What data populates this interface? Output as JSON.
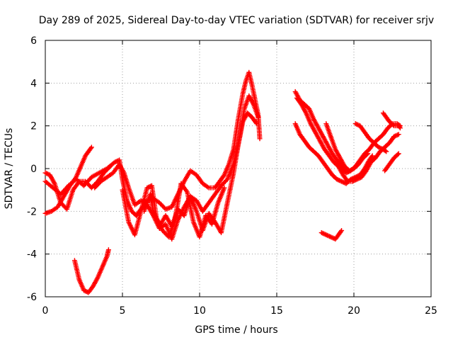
{
  "chart_data": {
    "type": "scatter",
    "title": "Day 289 of 2025, Sidereal Day-to-day VTEC variation (SDTVAR) for receiver srjv",
    "xlabel": "GPS time / hours",
    "ylabel": "SDTVAR / TECUs",
    "xlim": [
      0,
      25
    ],
    "ylim": [
      -6,
      6
    ],
    "x_ticks": [
      "0",
      "5",
      "10",
      "15",
      "20",
      "25"
    ],
    "y_ticks": [
      "-6",
      "-4",
      "-2",
      "0",
      "2",
      "4",
      "6"
    ],
    "grid": true,
    "marker": "plus",
    "color": "#ff0000",
    "series": [
      {
        "name": "track-a",
        "points": [
          [
            0.0,
            -0.6
          ],
          [
            0.5,
            -0.9
          ],
          [
            1.0,
            -1.2
          ],
          [
            1.5,
            -0.8
          ],
          [
            2.0,
            -0.5
          ],
          [
            2.5,
            -0.8
          ],
          [
            3.0,
            -0.4
          ],
          [
            3.5,
            -0.2
          ],
          [
            4.0,
            0.0
          ],
          [
            4.5,
            0.3
          ],
          [
            4.8,
            0.4
          ],
          [
            5.0,
            -0.5
          ],
          [
            5.3,
            -1.5
          ],
          [
            5.6,
            -2.0
          ],
          [
            5.9,
            -2.2
          ],
          [
            6.2,
            -1.9
          ],
          [
            6.6,
            -1.5
          ],
          [
            7.0,
            -1.4
          ],
          [
            7.4,
            -1.6
          ],
          [
            7.8,
            -1.9
          ],
          [
            8.2,
            -1.8
          ],
          [
            8.6,
            -1.2
          ],
          [
            9.0,
            -0.6
          ],
          [
            9.4,
            -0.1
          ],
          [
            9.8,
            -0.3
          ],
          [
            10.2,
            -0.7
          ],
          [
            10.6,
            -0.9
          ],
          [
            11.0,
            -0.9
          ],
          [
            11.3,
            -0.6
          ],
          [
            11.6,
            -0.3
          ],
          [
            11.9,
            0.2
          ],
          [
            12.2,
            0.9
          ],
          [
            12.5,
            2.3
          ],
          [
            12.8,
            3.5
          ],
          [
            13.0,
            4.1
          ],
          [
            13.2,
            4.5
          ],
          [
            13.4,
            3.9
          ],
          [
            13.6,
            3.2
          ],
          [
            13.8,
            2.5
          ],
          [
            13.9,
            1.4
          ]
        ]
      },
      {
        "name": "track-b",
        "points": [
          [
            0.0,
            -2.1
          ],
          [
            0.4,
            -2.0
          ],
          [
            0.8,
            -1.8
          ],
          [
            1.2,
            -1.3
          ],
          [
            1.6,
            -0.8
          ],
          [
            2.0,
            -0.4
          ],
          [
            2.3,
            0.1
          ],
          [
            2.6,
            0.6
          ],
          [
            2.9,
            0.9
          ],
          [
            3.0,
            1.0
          ]
        ]
      },
      {
        "name": "track-c",
        "points": [
          [
            3.2,
            -0.9
          ],
          [
            3.6,
            -0.6
          ],
          [
            4.0,
            -0.4
          ],
          [
            4.4,
            -0.2
          ],
          [
            4.8,
            0.2
          ],
          [
            5.1,
            -0.2
          ],
          [
            5.4,
            -0.9
          ],
          [
            5.8,
            -1.7
          ],
          [
            6.2,
            -1.5
          ],
          [
            6.6,
            -1.7
          ],
          [
            7.0,
            -2.2
          ],
          [
            7.4,
            -2.8
          ],
          [
            7.8,
            -2.6
          ],
          [
            8.2,
            -3.3
          ],
          [
            8.6,
            -2.4
          ],
          [
            9.0,
            -1.8
          ],
          [
            9.4,
            -1.3
          ],
          [
            9.8,
            -2.0
          ],
          [
            10.2,
            -2.9
          ],
          [
            10.6,
            -2.1
          ],
          [
            11.0,
            -2.5
          ],
          [
            11.4,
            -3.0
          ],
          [
            11.8,
            -1.6
          ],
          [
            12.2,
            -0.2
          ],
          [
            12.5,
            1.1
          ],
          [
            12.8,
            2.2
          ],
          [
            13.1,
            2.6
          ],
          [
            13.4,
            2.4
          ],
          [
            13.7,
            2.1
          ]
        ]
      },
      {
        "name": "track-d",
        "points": [
          [
            0.0,
            -0.2
          ],
          [
            0.3,
            -0.3
          ],
          [
            0.6,
            -0.7
          ],
          [
            1.0,
            -1.6
          ],
          [
            1.4,
            -1.9
          ],
          [
            1.8,
            -1.0
          ],
          [
            2.2,
            -0.6
          ],
          [
            2.6,
            -0.6
          ],
          [
            3.0,
            -0.9
          ],
          [
            3.4,
            -0.6
          ],
          [
            3.8,
            -0.2
          ],
          [
            4.2,
            0.1
          ]
        ]
      },
      {
        "name": "track-e",
        "points": [
          [
            5.0,
            -1.0
          ],
          [
            5.4,
            -2.5
          ],
          [
            5.8,
            -3.1
          ],
          [
            6.2,
            -2.0
          ],
          [
            6.6,
            -0.9
          ],
          [
            6.9,
            -0.8
          ],
          [
            7.2,
            -2.3
          ],
          [
            7.6,
            -2.9
          ],
          [
            8.0,
            -3.2
          ],
          [
            8.4,
            -2.4
          ],
          [
            8.8,
            -0.7
          ],
          [
            9.2,
            -1.1
          ],
          [
            9.6,
            -2.5
          ],
          [
            10.0,
            -3.2
          ],
          [
            10.4,
            -2.2
          ],
          [
            10.8,
            -2.6
          ],
          [
            11.2,
            -1.6
          ],
          [
            11.6,
            -0.9
          ]
        ]
      },
      {
        "name": "track-f",
        "points": [
          [
            6.4,
            -2.0
          ],
          [
            6.8,
            -1.2
          ],
          [
            7.0,
            -2.0
          ],
          [
            7.4,
            -2.7
          ],
          [
            7.8,
            -2.2
          ],
          [
            8.2,
            -2.7
          ],
          [
            8.6,
            -1.9
          ],
          [
            9.0,
            -2.2
          ],
          [
            9.4,
            -1.3
          ],
          [
            9.8,
            -1.5
          ],
          [
            10.2,
            -2.0
          ],
          [
            10.6,
            -1.6
          ],
          [
            11.0,
            -1.2
          ],
          [
            11.4,
            -0.8
          ],
          [
            11.8,
            -0.5
          ],
          [
            12.2,
            0.2
          ],
          [
            12.6,
            1.5
          ],
          [
            12.9,
            2.8
          ],
          [
            13.2,
            3.4
          ],
          [
            13.5,
            3.0
          ],
          [
            13.8,
            2.4
          ]
        ]
      },
      {
        "name": "track-g",
        "points": [
          [
            1.9,
            -4.3
          ],
          [
            2.2,
            -5.2
          ],
          [
            2.5,
            -5.7
          ],
          [
            2.8,
            -5.8
          ],
          [
            3.1,
            -5.5
          ],
          [
            3.4,
            -5.1
          ],
          [
            3.7,
            -4.6
          ],
          [
            4.0,
            -4.1
          ],
          [
            4.1,
            -3.8
          ]
        ]
      },
      {
        "name": "track-h",
        "points": [
          [
            16.2,
            3.6
          ],
          [
            16.5,
            3.2
          ],
          [
            16.8,
            3.0
          ],
          [
            17.1,
            2.8
          ],
          [
            17.4,
            2.3
          ],
          [
            17.7,
            1.9
          ],
          [
            18.0,
            1.5
          ],
          [
            18.3,
            1.1
          ],
          [
            18.6,
            0.7
          ],
          [
            18.9,
            0.4
          ],
          [
            19.2,
            0.1
          ],
          [
            19.5,
            -0.2
          ],
          [
            19.8,
            -0.1
          ],
          [
            20.1,
            0.1
          ],
          [
            20.4,
            0.4
          ],
          [
            20.7,
            0.7
          ],
          [
            21.0,
            0.9
          ],
          [
            21.3,
            1.2
          ],
          [
            21.6,
            1.4
          ],
          [
            21.9,
            1.6
          ],
          [
            22.2,
            1.9
          ],
          [
            22.5,
            2.1
          ],
          [
            22.8,
            2.1
          ],
          [
            23.0,
            2.0
          ]
        ]
      },
      {
        "name": "track-i",
        "points": [
          [
            16.3,
            3.3
          ],
          [
            16.6,
            3.0
          ],
          [
            16.9,
            2.6
          ],
          [
            17.2,
            2.1
          ],
          [
            17.5,
            1.7
          ],
          [
            17.8,
            1.3
          ],
          [
            18.1,
            0.9
          ],
          [
            18.4,
            0.6
          ],
          [
            18.7,
            0.3
          ],
          [
            19.0,
            0.1
          ],
          [
            19.3,
            -0.3
          ],
          [
            19.6,
            -0.6
          ],
          [
            19.9,
            -0.6
          ],
          [
            20.2,
            -0.5
          ],
          [
            20.5,
            -0.4
          ],
          [
            20.8,
            -0.1
          ],
          [
            21.1,
            0.3
          ],
          [
            21.4,
            0.5
          ],
          [
            21.7,
            0.8
          ],
          [
            22.0,
            1.0
          ],
          [
            22.3,
            1.2
          ],
          [
            22.6,
            1.5
          ],
          [
            22.9,
            1.6
          ]
        ]
      },
      {
        "name": "track-j",
        "points": [
          [
            16.2,
            2.1
          ],
          [
            16.5,
            1.6
          ],
          [
            16.8,
            1.3
          ],
          [
            17.1,
            1.0
          ],
          [
            17.4,
            0.8
          ],
          [
            17.7,
            0.6
          ],
          [
            18.0,
            0.3
          ],
          [
            18.3,
            0.0
          ],
          [
            18.6,
            -0.3
          ],
          [
            18.9,
            -0.5
          ],
          [
            19.2,
            -0.6
          ],
          [
            19.5,
            -0.7
          ],
          [
            19.8,
            -0.5
          ],
          [
            20.1,
            -0.4
          ],
          [
            20.4,
            -0.3
          ],
          [
            20.7,
            0.0
          ],
          [
            21.0,
            0.4
          ],
          [
            21.2,
            0.6
          ]
        ]
      },
      {
        "name": "track-k",
        "points": [
          [
            18.2,
            2.1
          ],
          [
            18.5,
            1.5
          ],
          [
            18.8,
            0.9
          ],
          [
            19.1,
            0.5
          ],
          [
            19.4,
            0.1
          ],
          [
            19.7,
            -0.1
          ],
          [
            20.0,
            0.0
          ],
          [
            20.3,
            0.2
          ],
          [
            20.6,
            0.5
          ],
          [
            20.9,
            0.7
          ]
        ]
      },
      {
        "name": "track-l",
        "points": [
          [
            20.1,
            2.1
          ],
          [
            20.4,
            2.0
          ],
          [
            20.7,
            1.7
          ],
          [
            21.0,
            1.4
          ],
          [
            21.3,
            1.2
          ],
          [
            21.6,
            1.0
          ],
          [
            21.9,
            0.9
          ],
          [
            22.1,
            0.8
          ]
        ]
      },
      {
        "name": "track-m",
        "points": [
          [
            22.0,
            -0.1
          ],
          [
            22.3,
            0.2
          ],
          [
            22.6,
            0.5
          ],
          [
            22.9,
            0.7
          ]
        ]
      },
      {
        "name": "track-n",
        "points": [
          [
            21.9,
            2.6
          ],
          [
            22.1,
            2.4
          ],
          [
            22.3,
            2.2
          ],
          [
            22.6,
            2.0
          ],
          [
            22.9,
            2.0
          ],
          [
            23.0,
            1.9
          ]
        ]
      },
      {
        "name": "track-o",
        "points": [
          [
            17.9,
            -3.0
          ],
          [
            18.2,
            -3.1
          ],
          [
            18.5,
            -3.2
          ],
          [
            18.8,
            -3.3
          ],
          [
            19.0,
            -3.1
          ],
          [
            19.2,
            -2.9
          ]
        ]
      }
    ]
  }
}
